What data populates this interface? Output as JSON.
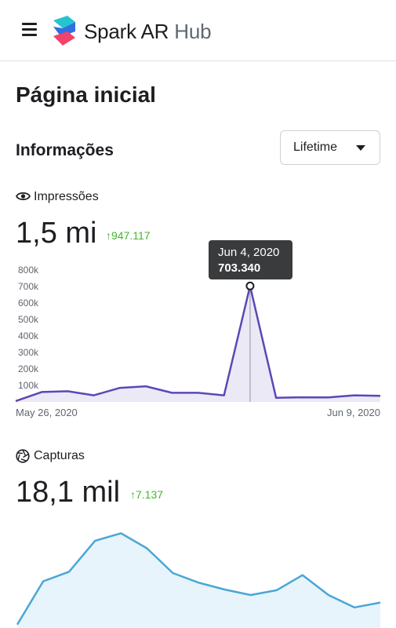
{
  "header": {
    "menu_icon": "hamburger-menu-icon",
    "logo_icon": "spark-ar-logo-icon",
    "brand_name": "Spark AR",
    "brand_suffix": "Hub"
  },
  "page": {
    "title": "Página inicial"
  },
  "insights": {
    "title": "Informações",
    "period_selector": {
      "selected": "Lifetime",
      "icon": "caret-down-icon"
    }
  },
  "impressions": {
    "label": "Impressões",
    "icon": "eye-icon",
    "value": "1,5 mi",
    "delta": "947.117",
    "delta_icon": "arrow-up-icon",
    "delta_color": "#42b72a",
    "tooltip": {
      "date": "Jun 4, 2020",
      "value": "703.340"
    },
    "x_start_label": "May 26, 2020",
    "x_end_label": "Jun 9, 2020"
  },
  "captures": {
    "label": "Capturas",
    "icon": "shutter-icon",
    "value": "18,1 mil",
    "delta": "7.137",
    "delta_icon": "arrow-up-icon",
    "delta_color": "#42b72a"
  },
  "chart_data": [
    {
      "type": "area",
      "color": "#5e46b8",
      "fill": "#ece9f7",
      "grid": false,
      "x": [
        "May 26, 2020",
        "May 27, 2020",
        "May 28, 2020",
        "May 29, 2020",
        "May 30, 2020",
        "May 31, 2020",
        "Jun 1, 2020",
        "Jun 2, 2020",
        "Jun 3, 2020",
        "Jun 4, 2020",
        "Jun 5, 2020",
        "Jun 6, 2020",
        "Jun 7, 2020",
        "Jun 8, 2020",
        "Jun 9, 2020"
      ],
      "values": [
        5000,
        60000,
        65000,
        40000,
        85000,
        95000,
        55000,
        55000,
        40000,
        703340,
        25000,
        28000,
        27000,
        40000,
        37000
      ],
      "yticks": [
        "100k",
        "200k",
        "300k",
        "400k",
        "500k",
        "600k",
        "700k",
        "800k"
      ],
      "ylim": [
        0,
        800000
      ],
      "highlight_index": 9
    },
    {
      "type": "area",
      "color": "#4aa6d6",
      "fill": "#e7f4fb",
      "grid": false,
      "values": [
        5,
        68,
        82,
        127,
        138,
        116,
        80,
        66,
        56,
        48,
        55,
        77,
        48,
        30,
        37
      ],
      "ylim": [
        0,
        160
      ]
    }
  ]
}
